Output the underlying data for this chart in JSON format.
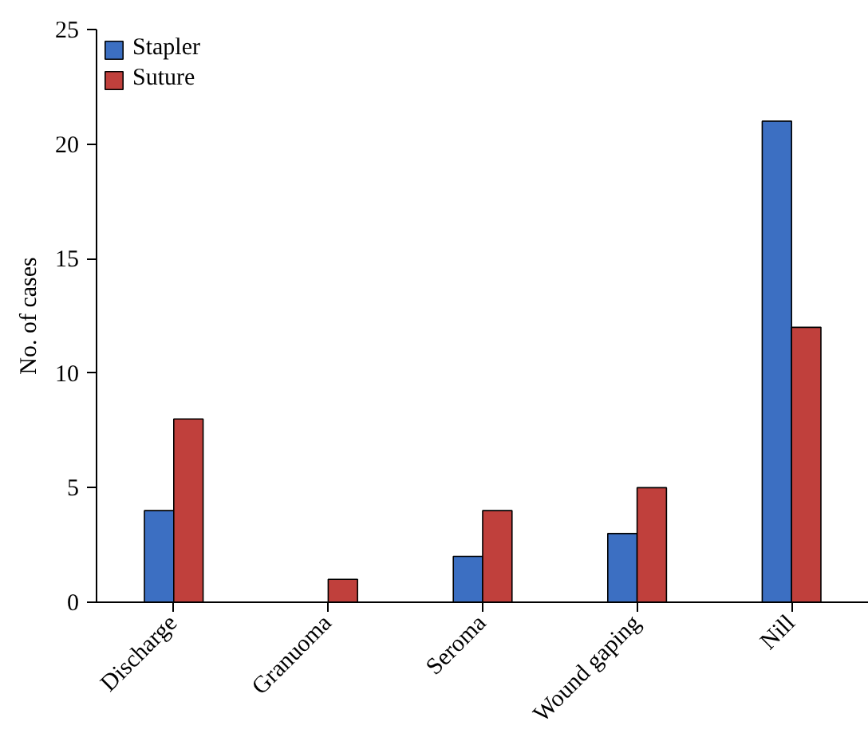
{
  "chart_data": {
    "type": "bar",
    "ylabel": "No. of cases",
    "categories": [
      "Discharge",
      "Granuoma",
      "Seroma",
      "Wound gaping",
      "Nill"
    ],
    "series": [
      {
        "name": "Stapler",
        "color": "#3c6fc2",
        "values": [
          4,
          0,
          2,
          3,
          21
        ]
      },
      {
        "name": "Suture",
        "color": "#c0403c",
        "values": [
          8,
          1,
          4,
          5,
          12
        ]
      }
    ],
    "ylim": [
      0,
      25
    ],
    "yticks": [
      0,
      5,
      10,
      15,
      20,
      25
    ],
    "grid": false,
    "legend": "top left"
  }
}
